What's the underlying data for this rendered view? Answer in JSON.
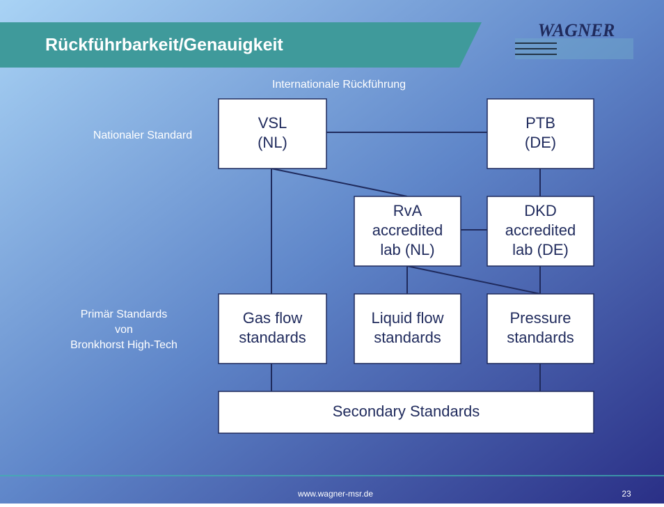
{
  "header": {
    "title": "Rückführbarkeit/Genauigkeit",
    "logo": "WAGNER"
  },
  "subtitle": "Internationale Rückführung",
  "side_labels": {
    "national": "Nationaler Standard",
    "primary": [
      "Primär Standards",
      "von",
      "Bronkhorst High-Tech"
    ]
  },
  "nodes": [
    {
      "lines": [
        "VSL",
        "(NL)"
      ]
    },
    {
      "lines": [
        "PTB",
        "(DE)"
      ]
    },
    {
      "lines": [
        "RvA",
        "accredited",
        "lab (NL)"
      ]
    },
    {
      "lines": [
        "DKD",
        "accredited",
        "lab (DE)"
      ]
    },
    {
      "lines": [
        "Gas flow",
        "standards"
      ]
    },
    {
      "lines": [
        "Liquid flow",
        "standards"
      ]
    },
    {
      "lines": [
        "Pressure",
        "standards"
      ]
    },
    {
      "lines": [
        "Secondary Standards"
      ]
    }
  ],
  "footer": {
    "url": "www.wagner-msr.de",
    "page": "23"
  }
}
